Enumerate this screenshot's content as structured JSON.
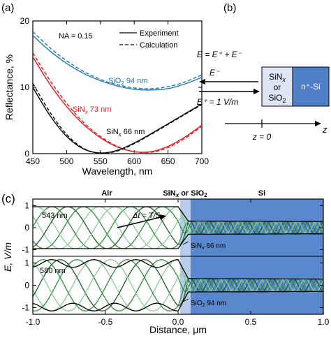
{
  "panels": {
    "a": {
      "label": "(a)"
    },
    "b": {
      "label": "(b)"
    },
    "c": {
      "label": "(c)"
    }
  },
  "colors": {
    "blue": "#1f77b4",
    "red": "#e31a1c",
    "black": "#000000",
    "silicon_fill": "#4f7fc9",
    "dielectric_fill": "#dce6f5",
    "green_dark": "#1e5a2a",
    "green_mid": "#2e8b3c",
    "green_light": "#8bc79a"
  },
  "chart_data": [
    {
      "type": "line",
      "panel": "a",
      "xlabel": "Wavelength, nm",
      "ylabel": "Reflectance, %",
      "xlim": [
        450,
        700
      ],
      "ylim": [
        0,
        20
      ],
      "xticks": [
        450,
        500,
        550,
        600,
        650,
        700
      ],
      "yticks": [
        0,
        10,
        20
      ],
      "annotation": "NA = 0.15",
      "legend": {
        "position": "top-right",
        "entries": [
          "Experiment",
          "Calculation"
        ]
      },
      "series": [
        {
          "label_main": "SiO",
          "label_sub": "2",
          "label_tail": " 94 nm",
          "color": "blue",
          "x": [
            450,
            475,
            500,
            525,
            550,
            575,
            600,
            625,
            650,
            675,
            700
          ],
          "experiment": [
            17.8,
            15.5,
            13.6,
            12.1,
            11.0,
            10.2,
            9.7,
            9.6,
            9.8,
            10.5,
            11.5
          ],
          "calculation": [
            18.4,
            16.0,
            14.0,
            12.4,
            11.2,
            10.4,
            9.9,
            9.8,
            10.1,
            10.8,
            11.9
          ]
        },
        {
          "label_main": "SiN",
          "label_sub": "x",
          "label_tail": " 73 nm",
          "color": "red",
          "x": [
            450,
            475,
            500,
            525,
            550,
            575,
            600,
            625,
            650,
            675,
            700
          ],
          "experiment": [
            14.6,
            10.5,
            7.1,
            4.4,
            2.4,
            1.0,
            0.3,
            0.3,
            1.1,
            2.5,
            4.3
          ],
          "calculation": [
            15.2,
            11.1,
            7.6,
            4.7,
            2.6,
            1.1,
            0.3,
            0.2,
            0.9,
            2.3,
            4.1
          ]
        },
        {
          "label_main": "SiN",
          "label_sub": "x",
          "label_tail": " 66 nm",
          "color": "black",
          "x": [
            450,
            475,
            500,
            525,
            550,
            575,
            600,
            625,
            650,
            675,
            700
          ],
          "experiment": [
            10.0,
            5.8,
            2.6,
            0.7,
            0.1,
            0.5,
            1.6,
            3.0,
            4.5,
            6.0,
            7.5
          ],
          "calculation": [
            10.6,
            6.3,
            2.9,
            0.8,
            0.05,
            0.4,
            1.5,
            2.9,
            4.4,
            5.9,
            7.4
          ]
        }
      ]
    },
    {
      "type": "line",
      "panel": "c",
      "xlabel": "Distance, μm",
      "ylabel": "E, V/m",
      "xlim": [
        -1.0,
        1.0
      ],
      "xticks": [
        -1.0,
        -0.5,
        0.0,
        0.5,
        1.0
      ],
      "region_labels": {
        "air": "Air",
        "dielectric_main": "SiN",
        "dielectric_sub": "x",
        "dielectric_tail": " or SiO",
        "dielectric_sub2": "2",
        "silicon": "Si"
      },
      "subplots": [
        {
          "wavelength_label": "543 nm",
          "wavelength_nm": 543,
          "yticks": [
            -1,
            0,
            1
          ],
          "ylim": [
            -1.3,
            1.3
          ],
          "layer_label_main": "SiN",
          "layer_label_sub": "x",
          "layer_label_tail": " 66 nm",
          "arrow_label": "Δt = T/5",
          "envelope_air": [
            -0.95,
            0.95
          ],
          "envelope_si": [
            -0.3,
            0.3
          ]
        },
        {
          "wavelength_label": "580 nm",
          "wavelength_nm": 580,
          "yticks": [
            -1,
            0,
            1
          ],
          "ylim": [
            -1.3,
            1.3
          ],
          "layer_label_main": "SiO",
          "layer_label_sub": "2",
          "layer_label_tail": " 94 nm",
          "envelope_air": [
            -1.15,
            1.15
          ],
          "envelope_si": [
            -0.3,
            0.3
          ]
        }
      ]
    }
  ],
  "diagram_b": {
    "equation": "E = E⁺ + E⁻",
    "reflected_label": "E⁻",
    "incident_label": "E⁺ = 1 V/m",
    "layer_label_lines": [
      "SiN",
      "or",
      "SiO"
    ],
    "layer_label_subs": [
      "x",
      "",
      "2"
    ],
    "substrate_label": "n⁺-Si",
    "origin_label": "z = 0",
    "axis_label": "z"
  }
}
